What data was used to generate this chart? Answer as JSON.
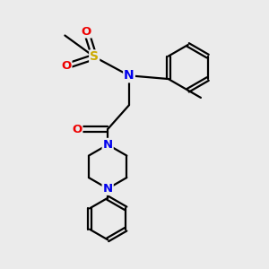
{
  "bg_color": "#ebebeb",
  "atom_colors": {
    "C": "#000000",
    "N": "#0000ee",
    "O": "#ee0000",
    "S": "#ccaa00"
  },
  "bond_color": "#000000",
  "bond_width": 1.6,
  "font_size_atom": 9.5
}
